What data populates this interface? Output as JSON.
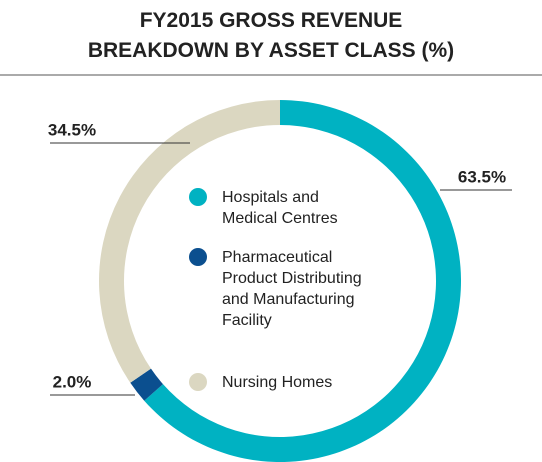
{
  "chart_data": {
    "type": "pie",
    "donut": true,
    "title": "FY2015 GROSS REVENUE BREAKDOWN BY ASSET CLASS (%)",
    "categories": [
      "Hospitals and Medical Centres",
      "Pharmaceutical Product Distributing and Manufacturing Facility",
      "Nursing Homes"
    ],
    "values": [
      63.5,
      2.0,
      34.5
    ],
    "value_labels": [
      "63.5%",
      "2.0%",
      "34.5%"
    ],
    "colors": [
      "#00b2c2",
      "#0b4f8f",
      "#dbd7c1"
    ]
  }
}
